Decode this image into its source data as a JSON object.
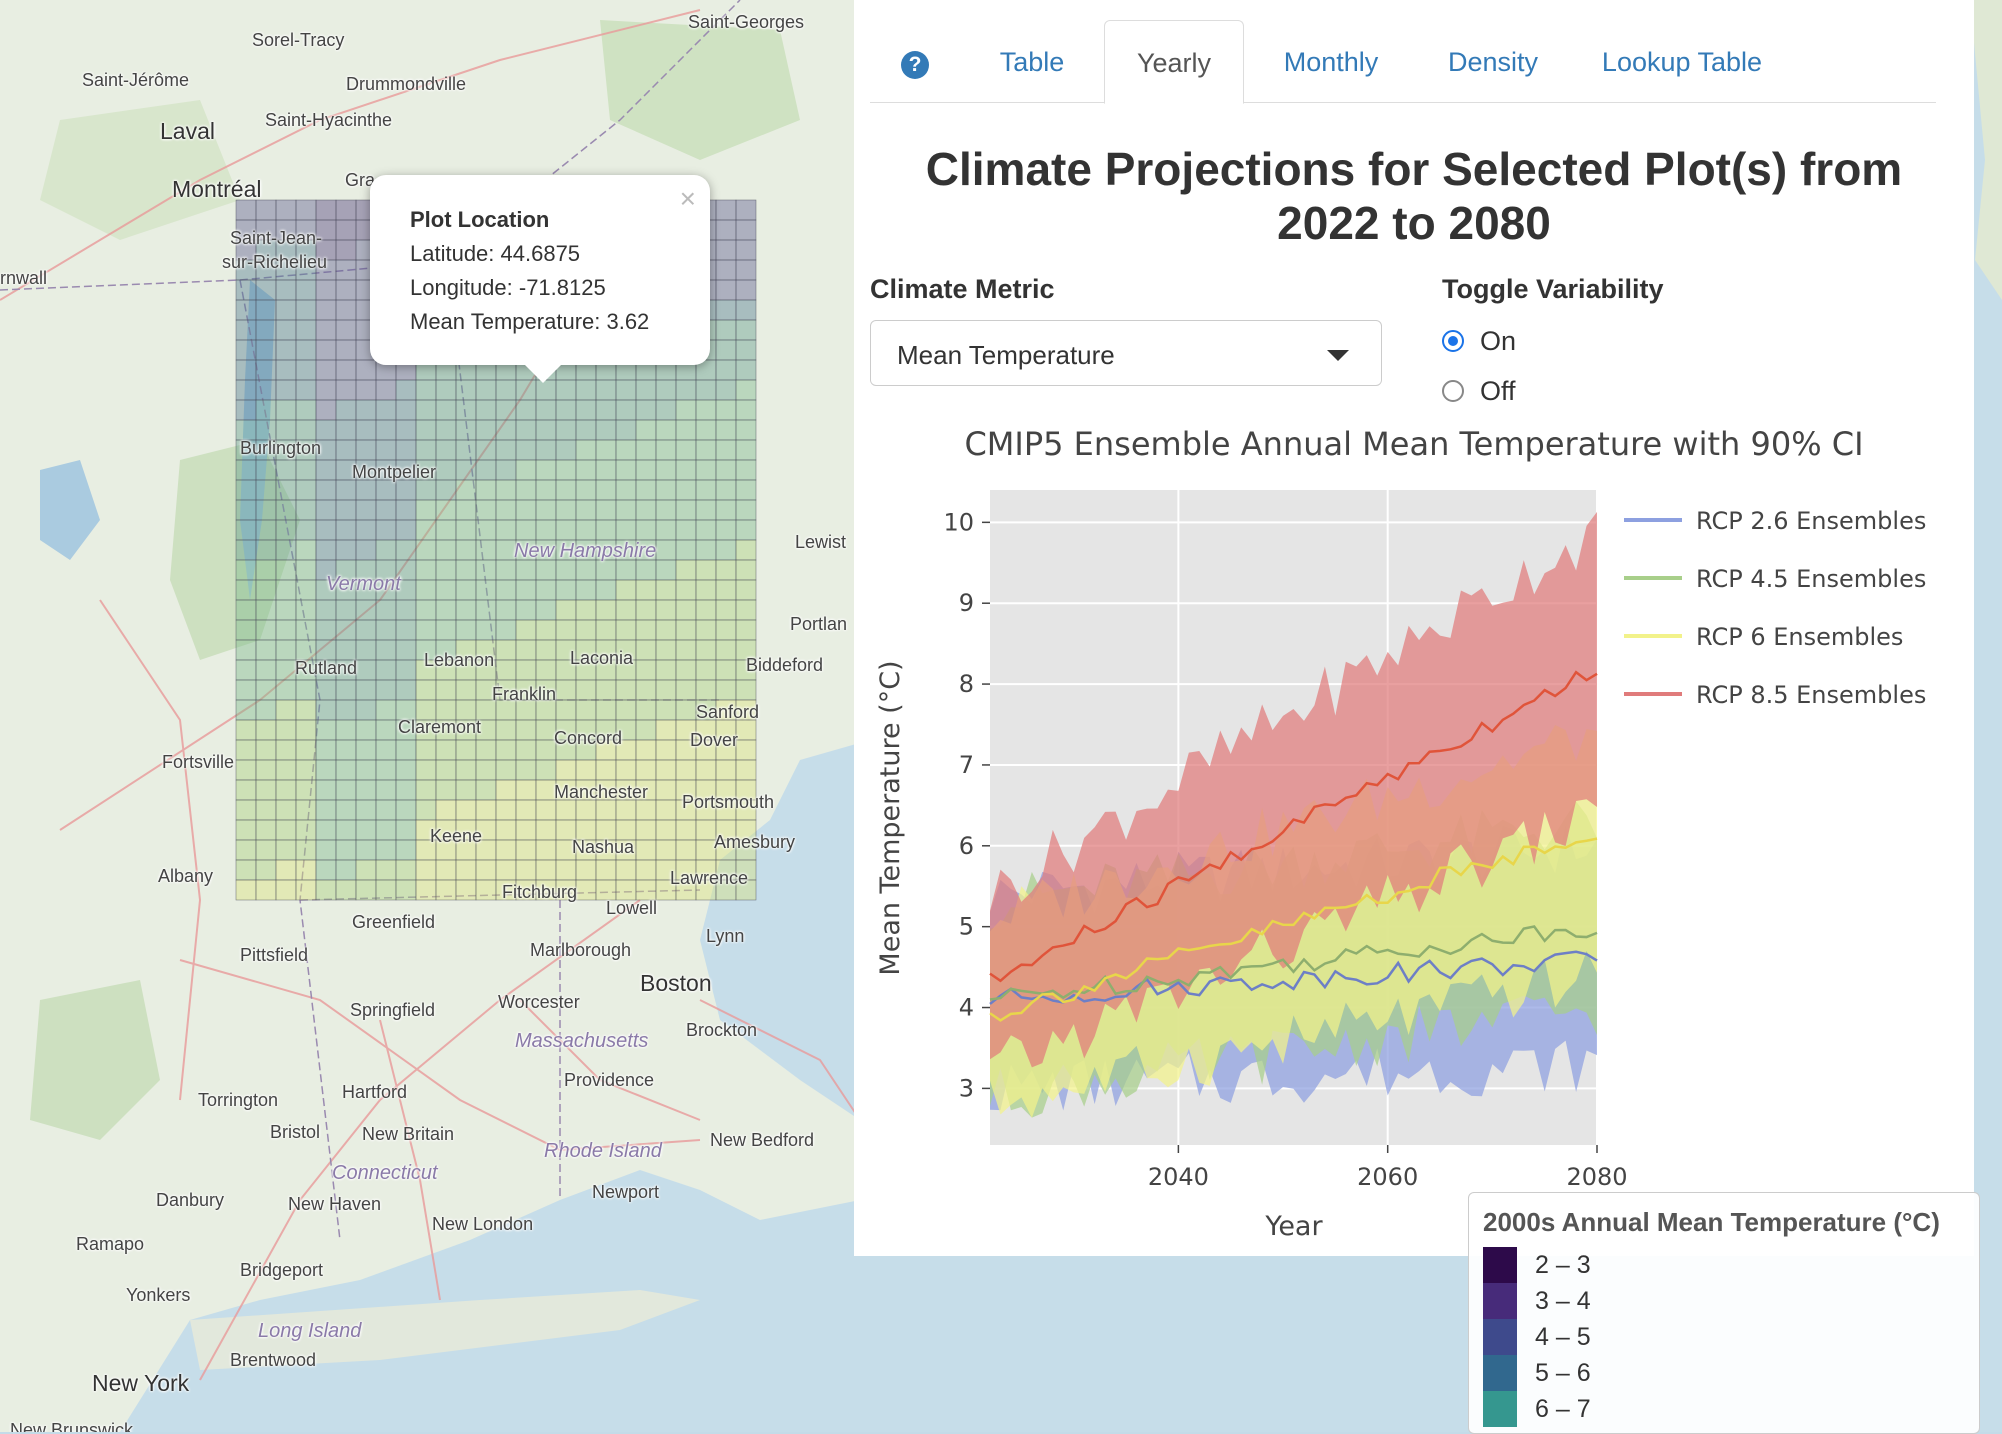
{
  "map": {
    "cities": [
      {
        "name": "Sorel-Tracy",
        "cls": ""
      },
      {
        "name": "Saint-Georges",
        "cls": ""
      },
      {
        "name": "Saint-Jérôme",
        "cls": ""
      },
      {
        "name": "Drummondville",
        "cls": ""
      },
      {
        "name": "Laval",
        "cls": "big"
      },
      {
        "name": "Saint-Hyacinthe",
        "cls": ""
      },
      {
        "name": "Montréal",
        "cls": "big"
      },
      {
        "name": "Gra",
        "cls": ""
      },
      {
        "name": "Saint-Jean-",
        "cls": ""
      },
      {
        "name": "sur-Richelieu",
        "cls": ""
      },
      {
        "name": "rnwall",
        "cls": ""
      },
      {
        "name": "Burlington",
        "cls": ""
      },
      {
        "name": "Montpelier",
        "cls": ""
      },
      {
        "name": "Vermont",
        "cls": "state"
      },
      {
        "name": "New Hampshire",
        "cls": "state"
      },
      {
        "name": "Lewist",
        "cls": ""
      },
      {
        "name": "Portlan",
        "cls": ""
      },
      {
        "name": "Biddeford",
        "cls": ""
      },
      {
        "name": "Rutland",
        "cls": ""
      },
      {
        "name": "Lebanon",
        "cls": ""
      },
      {
        "name": "Laconia",
        "cls": ""
      },
      {
        "name": "Franklin",
        "cls": ""
      },
      {
        "name": "Sanford",
        "cls": ""
      },
      {
        "name": "Dover",
        "cls": ""
      },
      {
        "name": "Claremont",
        "cls": ""
      },
      {
        "name": "Concord",
        "cls": ""
      },
      {
        "name": "Fortsville",
        "cls": ""
      },
      {
        "name": "Manchester",
        "cls": ""
      },
      {
        "name": "Portsmouth",
        "cls": ""
      },
      {
        "name": "Keene",
        "cls": ""
      },
      {
        "name": "Nashua",
        "cls": ""
      },
      {
        "name": "Amesbury",
        "cls": ""
      },
      {
        "name": "Albany",
        "cls": ""
      },
      {
        "name": "Lawrence",
        "cls": ""
      },
      {
        "name": "Fitchburg",
        "cls": ""
      },
      {
        "name": "Lowell",
        "cls": ""
      },
      {
        "name": "Greenfield",
        "cls": ""
      },
      {
        "name": "Pittsfield",
        "cls": ""
      },
      {
        "name": "Marlborough",
        "cls": ""
      },
      {
        "name": "Lynn",
        "cls": ""
      },
      {
        "name": "Boston",
        "cls": "big"
      },
      {
        "name": "Springfield",
        "cls": ""
      },
      {
        "name": "Worcester",
        "cls": ""
      },
      {
        "name": "Massachusetts",
        "cls": "state"
      },
      {
        "name": "Brockton",
        "cls": ""
      },
      {
        "name": "Providence",
        "cls": ""
      },
      {
        "name": "Torrington",
        "cls": ""
      },
      {
        "name": "Hartford",
        "cls": ""
      },
      {
        "name": "Bristol",
        "cls": ""
      },
      {
        "name": "New Britain",
        "cls": ""
      },
      {
        "name": "Rhode Island",
        "cls": "state"
      },
      {
        "name": "New Bedford",
        "cls": ""
      },
      {
        "name": "Connecticut",
        "cls": "state"
      },
      {
        "name": "Danbury",
        "cls": ""
      },
      {
        "name": "New Haven",
        "cls": ""
      },
      {
        "name": "Newport",
        "cls": ""
      },
      {
        "name": "New London",
        "cls": ""
      },
      {
        "name": "Ramapo",
        "cls": ""
      },
      {
        "name": "Bridgeport",
        "cls": ""
      },
      {
        "name": "Yonkers",
        "cls": ""
      },
      {
        "name": "Long Island",
        "cls": "state"
      },
      {
        "name": "Brentwood",
        "cls": ""
      },
      {
        "name": "New York",
        "cls": "big"
      },
      {
        "name": "New Brunswick",
        "cls": ""
      }
    ]
  },
  "popup": {
    "title": "Plot Location",
    "latitude": "Latitude: 44.6875",
    "longitude": "Longitude: -71.8125",
    "mean_temp": "Mean Temperature: 3.62",
    "close": "×"
  },
  "tabs": {
    "help": "?",
    "items": [
      {
        "label": "Table",
        "active": false
      },
      {
        "label": "Yearly",
        "active": true
      },
      {
        "label": "Monthly",
        "active": false
      },
      {
        "label": "Density",
        "active": false
      },
      {
        "label": "Lookup Table",
        "active": false
      }
    ]
  },
  "panel": {
    "title_line1": "Climate Projections for Selected Plot(s) from",
    "title_line2": "2022 to 2080",
    "metric_label": "Climate Metric",
    "metric_value": "Mean Temperature",
    "toggle_label": "Toggle Variability",
    "toggle_on": "On",
    "toggle_off": "Off",
    "toggle_selected": "On"
  },
  "chart_data": {
    "type": "area",
    "title": "CMIP5 Ensemble Annual Mean Temperature with 90% CI",
    "xlabel": "Year",
    "ylabel": "Mean Temperature (°C)",
    "xlim": [
      2022,
      2080
    ],
    "ylim": [
      2.3,
      10.4
    ],
    "xticks": [
      2040,
      2060,
      2080
    ],
    "yticks": [
      3,
      4,
      5,
      6,
      7,
      8,
      9,
      10
    ],
    "grid": true,
    "legend_position": "right",
    "series": [
      {
        "name": "RCP 2.6 Ensembles",
        "color": "#8da0e0",
        "lower_start": 3.0,
        "lower_end": 3.3,
        "mean_start": 4.1,
        "mean_end": 4.6,
        "upper_start": 5.4,
        "upper_end": 6.0
      },
      {
        "name": "RCP 4.5 Ensembles",
        "color": "#a8cf8a",
        "lower_start": 2.9,
        "lower_end": 4.0,
        "mean_start": 4.1,
        "mean_end": 5.0,
        "upper_start": 5.3,
        "upper_end": 6.3
      },
      {
        "name": "RCP 6 Ensembles",
        "color": "#f2f28a",
        "lower_start": 2.8,
        "lower_end": 4.4,
        "mean_start": 3.9,
        "mean_end": 6.2,
        "upper_start": 5.1,
        "upper_end": 7.4
      },
      {
        "name": "RCP 8.5 Ensembles",
        "color": "#e07b7b",
        "lower_start": 3.2,
        "lower_end": 6.4,
        "mean_start": 4.3,
        "mean_end": 8.2,
        "upper_start": 5.4,
        "upper_end": 9.9
      }
    ]
  },
  "legend": {
    "title": "2000s Annual Mean Temperature (°C)",
    "items": [
      {
        "label": "2 – 3",
        "color": "#2d0a4a"
      },
      {
        "label": "3 – 4",
        "color": "#472b7a"
      },
      {
        "label": "4 – 5",
        "color": "#3e4a8c"
      },
      {
        "label": "5 – 6",
        "color": "#31688e"
      },
      {
        "label": "6 – 7",
        "color": "#35978f"
      }
    ]
  },
  "colors": {
    "accent": "#337ab7",
    "radio": "#1a73e8"
  }
}
